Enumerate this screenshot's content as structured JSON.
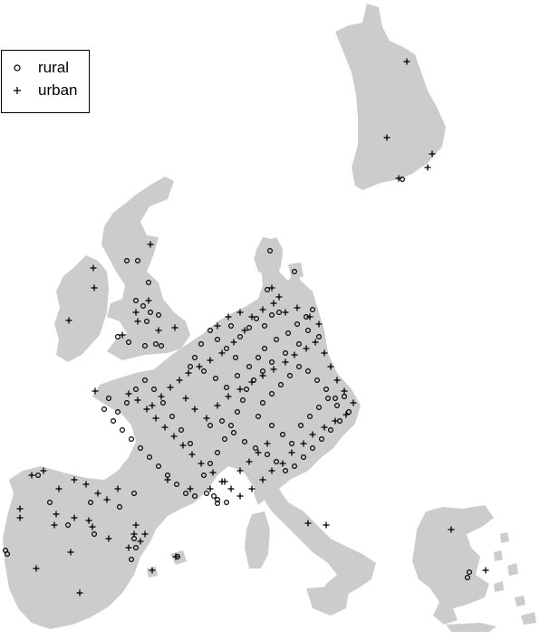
{
  "legend": {
    "rural_label": "rural",
    "urban_label": "urban"
  },
  "colors": {
    "land": "#cccccc",
    "marker": "#000000",
    "background": "#ffffff"
  },
  "series": [
    {
      "name": "rural",
      "symbol": "open-circle"
    },
    {
      "name": "urban",
      "symbol": "plus"
    }
  ]
}
